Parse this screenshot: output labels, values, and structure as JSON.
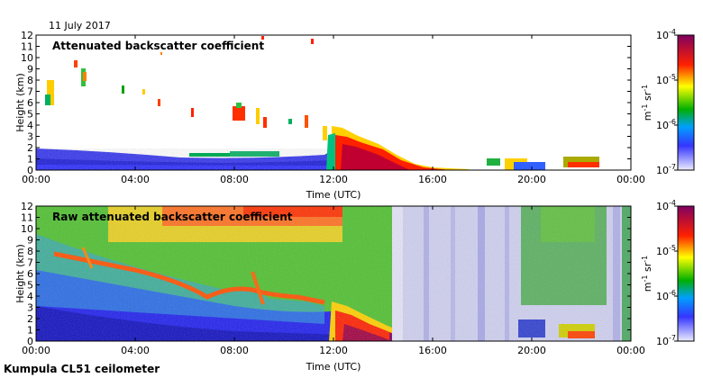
{
  "date_label": "11 July 2017",
  "footer_label": "Kumpula CL51 ceilometer",
  "colorbar": {
    "unit_base": "m",
    "unit_exp1": "-1",
    "unit_mid": " sr",
    "unit_exp2": "-1",
    "ticks": [
      {
        "base": "10",
        "exp": "-4",
        "value": 0.0001
      },
      {
        "base": "10",
        "exp": "-5",
        "value": 1e-05
      },
      {
        "base": "10",
        "exp": "-6",
        "value": 1e-06
      },
      {
        "base": "10",
        "exp": "-7",
        "value": 1e-07
      }
    ],
    "scale": "log",
    "colors": [
      "#e0e0ff",
      "#3030ff",
      "#00b000",
      "#ffff00",
      "#ff0000",
      "#800060"
    ]
  },
  "chart_data": [
    {
      "type": "heatmap",
      "title": "Attenuated backscatter coefficient",
      "xlabel": "Time (UTC)",
      "ylabel": "Height (km)",
      "xlim": [
        0,
        24
      ],
      "ylim": [
        0,
        12
      ],
      "x_ticks": [
        "00:00",
        "04:00",
        "08:00",
        "12:00",
        "16:00",
        "20:00",
        "00:00"
      ],
      "y_ticks": [
        "0",
        "1",
        "2",
        "3",
        "4",
        "5",
        "6",
        "7",
        "8",
        "9",
        "10",
        "11",
        "12"
      ],
      "color_scale": "log",
      "color_range": [
        1e-07,
        0.0001
      ]
    },
    {
      "type": "heatmap",
      "title": "Raw attenuated backscatter coefficient",
      "xlabel": "Time (UTC)",
      "ylabel": "Height (km)",
      "xlim": [
        0,
        24
      ],
      "ylim": [
        0,
        12
      ],
      "x_ticks": [
        "00:00",
        "04:00",
        "08:00",
        "12:00",
        "16:00",
        "20:00",
        "00:00"
      ],
      "y_ticks": [
        "0",
        "1",
        "2",
        "3",
        "4",
        "5",
        "6",
        "7",
        "8",
        "9",
        "10",
        "11",
        "12"
      ],
      "color_scale": "log",
      "color_range": [
        1e-07,
        0.0001
      ]
    }
  ]
}
